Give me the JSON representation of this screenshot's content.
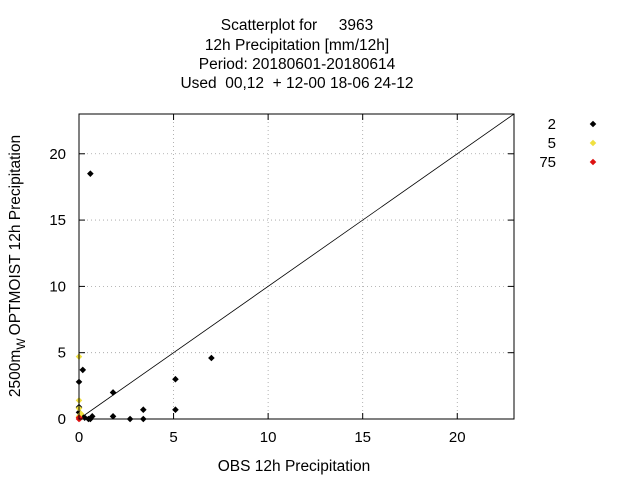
{
  "chart_data": {
    "type": "scatter",
    "title_lines": [
      "Scatterplot for     3963",
      "12h Precipitation [mm/12h]",
      "Period: 20180601-20180614",
      "Used  00,12  + 12-00 18-06 24-12"
    ],
    "xlabel": "OBS 12h Precipitation",
    "ylabel_main": "2500m",
    "ylabel_sub": "W",
    "ylabel_rest": "OPTMOIST 12h Precipitation",
    "xlim": [
      0,
      23
    ],
    "ylim": [
      0,
      23
    ],
    "x_ticks": [
      "0",
      "5",
      "10",
      "15",
      "20"
    ],
    "y_ticks": [
      "0",
      "5",
      "10",
      "15",
      "20"
    ],
    "grid": true,
    "diagonal": true,
    "legend_position": "right-outside",
    "series": [
      {
        "name": "2",
        "color": "#000000",
        "points": [
          [
            0.6,
            18.5
          ],
          [
            0.0,
            2.8
          ],
          [
            0.2,
            3.7
          ],
          [
            0.0,
            0.9
          ],
          [
            0.0,
            0.5
          ],
          [
            0.1,
            0.3
          ],
          [
            0.3,
            0.1
          ],
          [
            0.5,
            0.0
          ],
          [
            0.7,
            0.2
          ],
          [
            0.6,
            0.0
          ],
          [
            1.8,
            2.0
          ],
          [
            1.8,
            0.2
          ],
          [
            2.7,
            0.0
          ],
          [
            3.4,
            0.7
          ],
          [
            3.4,
            0.0
          ],
          [
            5.1,
            3.0
          ],
          [
            5.1,
            0.7
          ],
          [
            7.0,
            4.6
          ]
        ]
      },
      {
        "name": "5",
        "color": "#f0e040",
        "points": [
          [
            0.0,
            4.7
          ],
          [
            0.0,
            1.4
          ],
          [
            0.0,
            0.8
          ],
          [
            0.1,
            0.4
          ],
          [
            0.0,
            0.2
          ]
        ]
      },
      {
        "name": "75",
        "color": "#dd1111",
        "points": [
          [
            0.0,
            0.0
          ],
          [
            0.05,
            0.05
          ],
          [
            0.0,
            0.1
          ]
        ]
      }
    ]
  }
}
